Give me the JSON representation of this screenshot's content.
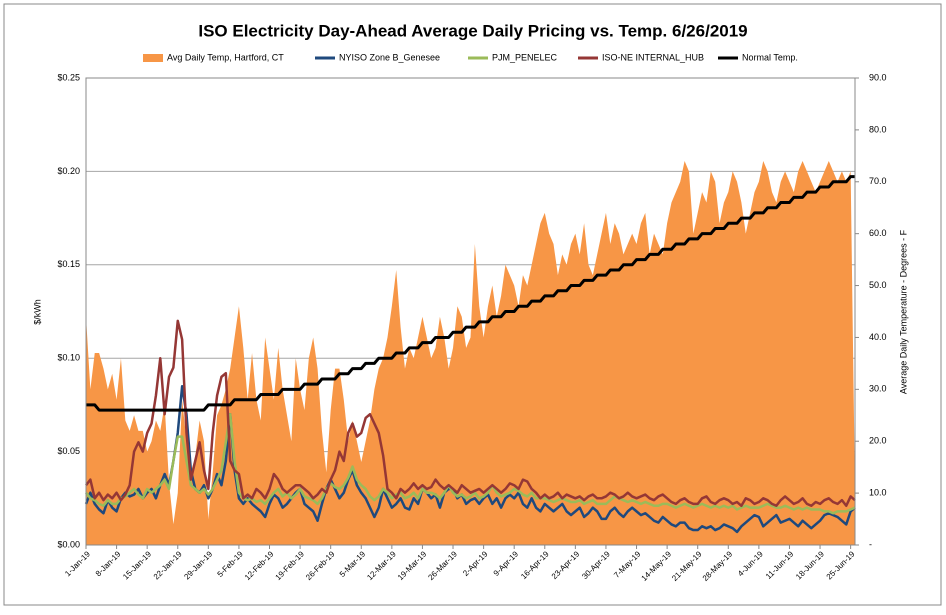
{
  "chart_data": {
    "type": "line",
    "title": "ISO Electricity Day-Ahead Average Daily Pricing vs. Temp. 6/26/2019",
    "y_label": "$/kWh",
    "y2_label": "Average Daily Temperature - Degrees - F",
    "grid": true,
    "ylim": [
      0,
      0.25
    ],
    "yticks": [
      {
        "value": 0,
        "label": "$0.00"
      },
      {
        "value": 0.05,
        "label": "$0.05"
      },
      {
        "value": 0.1,
        "label": "$0.10"
      },
      {
        "value": 0.15,
        "label": "$0.15"
      },
      {
        "value": 0.2,
        "label": "$0.20"
      },
      {
        "value": 0.25,
        "label": "$0.25"
      }
    ],
    "y2lim": [
      0,
      90
    ],
    "y2ticks": [
      {
        "value": 0,
        "label": "-"
      },
      {
        "value": 10,
        "label": "10.0"
      },
      {
        "value": 20,
        "label": "20.0"
      },
      {
        "value": 30,
        "label": "30.0"
      },
      {
        "value": 40,
        "label": "40.0"
      },
      {
        "value": 50,
        "label": "50.0"
      },
      {
        "value": 60,
        "label": "60.0"
      },
      {
        "value": 70,
        "label": "70.0"
      },
      {
        "value": 80,
        "label": "80.0"
      },
      {
        "value": 90,
        "label": "90.0"
      }
    ],
    "categories": [
      "1-Jan-19",
      null,
      null,
      null,
      null,
      null,
      null,
      "8-Jan-19",
      null,
      null,
      null,
      null,
      null,
      null,
      "15-Jan-19",
      null,
      null,
      null,
      null,
      null,
      null,
      "22-Jan-19",
      null,
      null,
      null,
      null,
      null,
      null,
      "29-Jan-19",
      null,
      null,
      null,
      null,
      null,
      null,
      "5-Feb-19",
      null,
      null,
      null,
      null,
      null,
      null,
      "12-Feb-19",
      null,
      null,
      null,
      null,
      null,
      null,
      "19-Feb-19",
      null,
      null,
      null,
      null,
      null,
      null,
      "26-Feb-19",
      null,
      null,
      null,
      null,
      null,
      null,
      "5-Mar-19",
      null,
      null,
      null,
      null,
      null,
      null,
      "12-Mar-19",
      null,
      null,
      null,
      null,
      null,
      null,
      "19-Mar-19",
      null,
      null,
      null,
      null,
      null,
      null,
      "26-Mar-19",
      null,
      null,
      null,
      null,
      null,
      null,
      "2-Apr-19",
      null,
      null,
      null,
      null,
      null,
      null,
      "9-Apr-19",
      null,
      null,
      null,
      null,
      null,
      null,
      "16-Apr-19",
      null,
      null,
      null,
      null,
      null,
      null,
      "23-Apr-19",
      null,
      null,
      null,
      null,
      null,
      null,
      "30-Apr-19",
      null,
      null,
      null,
      null,
      null,
      null,
      "7-May-19",
      null,
      null,
      null,
      null,
      null,
      null,
      "14-May-19",
      null,
      null,
      null,
      null,
      null,
      null,
      "21-May-19",
      null,
      null,
      null,
      null,
      null,
      null,
      "28-May-19",
      null,
      null,
      null,
      null,
      null,
      null,
      "4-Jun-19",
      null,
      null,
      null,
      null,
      null,
      null,
      "11-Jun-19",
      null,
      null,
      null,
      null,
      null,
      null,
      "18-Jun-19",
      null,
      null,
      null,
      null,
      null,
      null,
      "25-Jun-19",
      null
    ],
    "series": [
      {
        "name": "Avg Daily Temp, Hartford, CT",
        "kind": "area",
        "axis": "y2",
        "color": "#f79646",
        "values": [
          44,
          30,
          37,
          37,
          34,
          30,
          33,
          28,
          36,
          24,
          22,
          25,
          22,
          22,
          18,
          20,
          24,
          22,
          27,
          12,
          4,
          10,
          28,
          20,
          14,
          17,
          24,
          20,
          5,
          14,
          25,
          27,
          30,
          34,
          40,
          46,
          38,
          28,
          37,
          28,
          24,
          40,
          34,
          28,
          38,
          30,
          25,
          20,
          36,
          30,
          26,
          36,
          40,
          34,
          22,
          14,
          26,
          34,
          34,
          28,
          20,
          24,
          20,
          16,
          20,
          24,
          30,
          34,
          36,
          40,
          46,
          53,
          42,
          34,
          38,
          36,
          40,
          44,
          40,
          36,
          38,
          44,
          40,
          34,
          38,
          46,
          44,
          38,
          40,
          58,
          46,
          40,
          46,
          50,
          44,
          48,
          54,
          52,
          50,
          46,
          52,
          50,
          54,
          58,
          62,
          64,
          60,
          58,
          52,
          56,
          54,
          58,
          60,
          56,
          62,
          54,
          52,
          56,
          60,
          64,
          58,
          62,
          60,
          56,
          58,
          60,
          58,
          62,
          64,
          56,
          60,
          58,
          56,
          62,
          66,
          68,
          70,
          74,
          72,
          60,
          64,
          68,
          66,
          72,
          70,
          62,
          66,
          68,
          72,
          70,
          66,
          60,
          64,
          68,
          70,
          74,
          72,
          68,
          66,
          70,
          72,
          70,
          68,
          72,
          74,
          72,
          70,
          68,
          70,
          72,
          74,
          72,
          70,
          72,
          70,
          72,
          10
        ]
      },
      {
        "name": "NYISO Zone B_Genesee",
        "kind": "line",
        "color": "#1f497d",
        "values": [
          0.022,
          0.028,
          0.022,
          0.019,
          0.017,
          0.024,
          0.02,
          0.018,
          0.025,
          0.028,
          0.026,
          0.027,
          0.03,
          0.025,
          0.028,
          0.03,
          0.025,
          0.032,
          0.038,
          0.032,
          0.045,
          0.06,
          0.085,
          0.07,
          0.04,
          0.03,
          0.028,
          0.032,
          0.025,
          0.03,
          0.038,
          0.032,
          0.045,
          0.07,
          0.04,
          0.025,
          0.022,
          0.025,
          0.022,
          0.02,
          0.018,
          0.015,
          0.022,
          0.027,
          0.025,
          0.02,
          0.022,
          0.025,
          0.028,
          0.03,
          0.022,
          0.02,
          0.018,
          0.013,
          0.022,
          0.03,
          0.035,
          0.03,
          0.025,
          0.028,
          0.035,
          0.04,
          0.032,
          0.028,
          0.025,
          0.02,
          0.015,
          0.02,
          0.03,
          0.025,
          0.02,
          0.022,
          0.025,
          0.02,
          0.019,
          0.025,
          0.022,
          0.03,
          0.028,
          0.025,
          0.027,
          0.02,
          0.028,
          0.03,
          0.03,
          0.025,
          0.027,
          0.022,
          0.024,
          0.025,
          0.022,
          0.025,
          0.027,
          0.022,
          0.025,
          0.02,
          0.025,
          0.027,
          0.025,
          0.028,
          0.022,
          0.02,
          0.025,
          0.02,
          0.018,
          0.022,
          0.02,
          0.018,
          0.02,
          0.022,
          0.018,
          0.016,
          0.018,
          0.02,
          0.015,
          0.017,
          0.02,
          0.018,
          0.014,
          0.014,
          0.018,
          0.02,
          0.017,
          0.015,
          0.018,
          0.02,
          0.018,
          0.016,
          0.017,
          0.015,
          0.013,
          0.012,
          0.015,
          0.013,
          0.011,
          0.01,
          0.012,
          0.012,
          0.009,
          0.008,
          0.008,
          0.01,
          0.009,
          0.01,
          0.008,
          0.009,
          0.011,
          0.01,
          0.009,
          0.007,
          0.01,
          0.012,
          0.014,
          0.016,
          0.015,
          0.01,
          0.012,
          0.014,
          0.016,
          0.012,
          0.013,
          0.014,
          0.012,
          0.01,
          0.013,
          0.011,
          0.009,
          0.011,
          0.013,
          0.016,
          0.017,
          0.016,
          0.015,
          0.013,
          0.011,
          0.018,
          0.02
        ]
      },
      {
        "name": "PJM_PENELEC",
        "kind": "line",
        "color": "#9bbb59",
        "values": [
          0.028,
          0.025,
          0.024,
          0.022,
          0.021,
          0.024,
          0.022,
          0.022,
          0.025,
          0.026,
          0.028,
          0.03,
          0.027,
          0.025,
          0.03,
          0.028,
          0.03,
          0.032,
          0.035,
          0.03,
          0.045,
          0.058,
          0.058,
          0.045,
          0.032,
          0.03,
          0.028,
          0.03,
          0.027,
          0.03,
          0.035,
          0.04,
          0.055,
          0.07,
          0.045,
          0.028,
          0.025,
          0.024,
          0.025,
          0.023,
          0.024,
          0.022,
          0.025,
          0.028,
          0.03,
          0.026,
          0.028,
          0.025,
          0.027,
          0.03,
          0.026,
          0.025,
          0.024,
          0.022,
          0.025,
          0.03,
          0.033,
          0.031,
          0.03,
          0.032,
          0.036,
          0.042,
          0.035,
          0.032,
          0.03,
          0.026,
          0.024,
          0.026,
          0.03,
          0.028,
          0.025,
          0.027,
          0.028,
          0.025,
          0.026,
          0.028,
          0.025,
          0.03,
          0.028,
          0.028,
          0.027,
          0.025,
          0.028,
          0.032,
          0.028,
          0.026,
          0.027,
          0.025,
          0.026,
          0.028,
          0.025,
          0.026,
          0.028,
          0.032,
          0.028,
          0.026,
          0.027,
          0.028,
          0.03,
          0.029,
          0.027,
          0.026,
          0.028,
          0.025,
          0.025,
          0.025,
          0.024,
          0.023,
          0.024,
          0.025,
          0.024,
          0.023,
          0.023,
          0.024,
          0.022,
          0.023,
          0.024,
          0.022,
          0.022,
          0.022,
          0.024,
          0.026,
          0.025,
          0.024,
          0.023,
          0.024,
          0.023,
          0.022,
          0.023,
          0.022,
          0.021,
          0.021,
          0.022,
          0.022,
          0.021,
          0.02,
          0.021,
          0.022,
          0.021,
          0.02,
          0.021,
          0.022,
          0.021,
          0.02,
          0.021,
          0.02,
          0.021,
          0.02,
          0.021,
          0.019,
          0.02,
          0.021,
          0.02,
          0.02,
          0.02,
          0.021,
          0.022,
          0.021,
          0.02,
          0.02,
          0.021,
          0.02,
          0.019,
          0.02,
          0.019,
          0.02,
          0.019,
          0.019,
          0.019,
          0.018,
          0.018,
          0.017,
          0.018,
          0.018,
          0.018,
          0.019,
          0.02
        ]
      },
      {
        "name": "ISO-NE INTERNAL_HUB",
        "kind": "line",
        "color": "#953735",
        "values": [
          0.032,
          0.035,
          0.025,
          0.028,
          0.024,
          0.027,
          0.025,
          0.028,
          0.024,
          0.027,
          0.032,
          0.05,
          0.055,
          0.05,
          0.06,
          0.065,
          0.08,
          0.1,
          0.07,
          0.09,
          0.095,
          0.12,
          0.11,
          0.06,
          0.035,
          0.045,
          0.055,
          0.04,
          0.03,
          0.06,
          0.08,
          0.09,
          0.092,
          0.045,
          0.04,
          0.038,
          0.025,
          0.027,
          0.025,
          0.03,
          0.028,
          0.025,
          0.03,
          0.038,
          0.035,
          0.03,
          0.028,
          0.03,
          0.032,
          0.032,
          0.03,
          0.028,
          0.025,
          0.027,
          0.03,
          0.028,
          0.035,
          0.04,
          0.05,
          0.045,
          0.06,
          0.065,
          0.058,
          0.06,
          0.068,
          0.07,
          0.065,
          0.06,
          0.048,
          0.03,
          0.028,
          0.025,
          0.03,
          0.028,
          0.03,
          0.033,
          0.03,
          0.032,
          0.03,
          0.031,
          0.035,
          0.032,
          0.03,
          0.032,
          0.03,
          0.028,
          0.032,
          0.03,
          0.028,
          0.029,
          0.03,
          0.028,
          0.03,
          0.032,
          0.03,
          0.028,
          0.03,
          0.033,
          0.032,
          0.03,
          0.035,
          0.034,
          0.03,
          0.028,
          0.025,
          0.027,
          0.025,
          0.026,
          0.028,
          0.025,
          0.027,
          0.026,
          0.025,
          0.026,
          0.024,
          0.026,
          0.027,
          0.025,
          0.025,
          0.026,
          0.028,
          0.027,
          0.025,
          0.026,
          0.028,
          0.026,
          0.025,
          0.026,
          0.027,
          0.025,
          0.024,
          0.026,
          0.027,
          0.025,
          0.023,
          0.022,
          0.024,
          0.025,
          0.023,
          0.022,
          0.022,
          0.025,
          0.026,
          0.023,
          0.022,
          0.024,
          0.025,
          0.024,
          0.022,
          0.023,
          0.021,
          0.025,
          0.024,
          0.022,
          0.023,
          0.025,
          0.024,
          0.022,
          0.021,
          0.024,
          0.026,
          0.024,
          0.022,
          0.023,
          0.025,
          0.022,
          0.021,
          0.023,
          0.022,
          0.024,
          0.025,
          0.023,
          0.022,
          0.024,
          0.021,
          0.026,
          0.024
        ]
      },
      {
        "name": "Normal Temp.",
        "kind": "line",
        "axis": "y2",
        "color": "#000000",
        "values": [
          27,
          27,
          27,
          26,
          26,
          26,
          26,
          26,
          26,
          26,
          26,
          26,
          26,
          26,
          26,
          26,
          26,
          26,
          26,
          26,
          26,
          26,
          26,
          26,
          26,
          26,
          26,
          26,
          27,
          27,
          27,
          27,
          27,
          27,
          28,
          28,
          28,
          28,
          28,
          28,
          29,
          29,
          29,
          29,
          29,
          30,
          30,
          30,
          30,
          30,
          31,
          31,
          31,
          31,
          32,
          32,
          32,
          32,
          33,
          33,
          33,
          34,
          34,
          34,
          35,
          35,
          35,
          36,
          36,
          36,
          36,
          37,
          37,
          37,
          38,
          38,
          38,
          39,
          39,
          39,
          40,
          40,
          40,
          40,
          41,
          41,
          41,
          42,
          42,
          42,
          43,
          43,
          43,
          44,
          44,
          44,
          45,
          45,
          45,
          46,
          46,
          46,
          47,
          47,
          47,
          48,
          48,
          48,
          49,
          49,
          49,
          50,
          50,
          50,
          51,
          51,
          51,
          52,
          52,
          52,
          53,
          53,
          53,
          54,
          54,
          54,
          55,
          55,
          55,
          56,
          56,
          56,
          57,
          57,
          57,
          58,
          58,
          58,
          59,
          59,
          59,
          60,
          60,
          60,
          61,
          61,
          61,
          62,
          62,
          62,
          63,
          63,
          63,
          64,
          64,
          64,
          65,
          65,
          65,
          66,
          66,
          66,
          67,
          67,
          67,
          68,
          68,
          68,
          69,
          69,
          69,
          70,
          70,
          70,
          70,
          71,
          71
        ]
      }
    ]
  }
}
